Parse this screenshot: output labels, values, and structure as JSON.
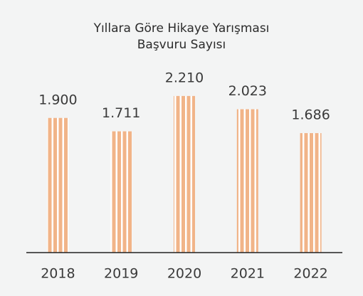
{
  "chart_data": {
    "type": "bar",
    "title": [
      "Yıllara Göre Hikaye Yarışması",
      "Başvuru Sayısı"
    ],
    "categories": [
      "2018",
      "2019",
      "2020",
      "2021",
      "2022"
    ],
    "values": [
      1900,
      1711,
      2210,
      2023,
      1686
    ],
    "value_labels": [
      "1.900",
      "1.711",
      "2.210",
      "2.023",
      "1.686"
    ],
    "color": "#f1b488",
    "ylim": [
      0,
      2500
    ]
  }
}
